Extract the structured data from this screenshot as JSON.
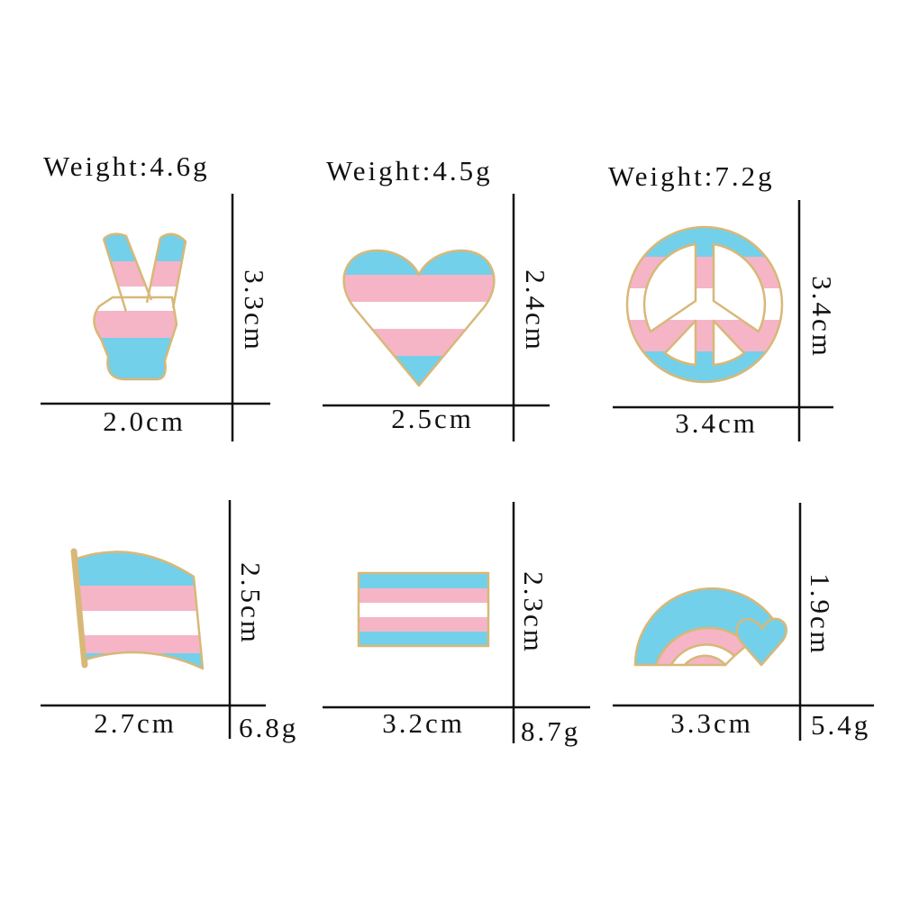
{
  "items": [
    {
      "weight": "Weight:4.6g",
      "height": "3.3cm",
      "width": "2.0cm"
    },
    {
      "weight": "Weight:4.5g",
      "height": "2.4cm",
      "width": "2.5cm"
    },
    {
      "weight": "Weight:7.2g",
      "height": "3.4cm",
      "width": "3.4cm"
    },
    {
      "weight": "6.8g",
      "height": "2.5cm",
      "width": "2.7cm"
    },
    {
      "weight": "8.7g",
      "height": "2.3cm",
      "width": "3.2cm"
    },
    {
      "weight": "5.4g",
      "height": "1.9cm",
      "width": "3.3cm"
    }
  ]
}
